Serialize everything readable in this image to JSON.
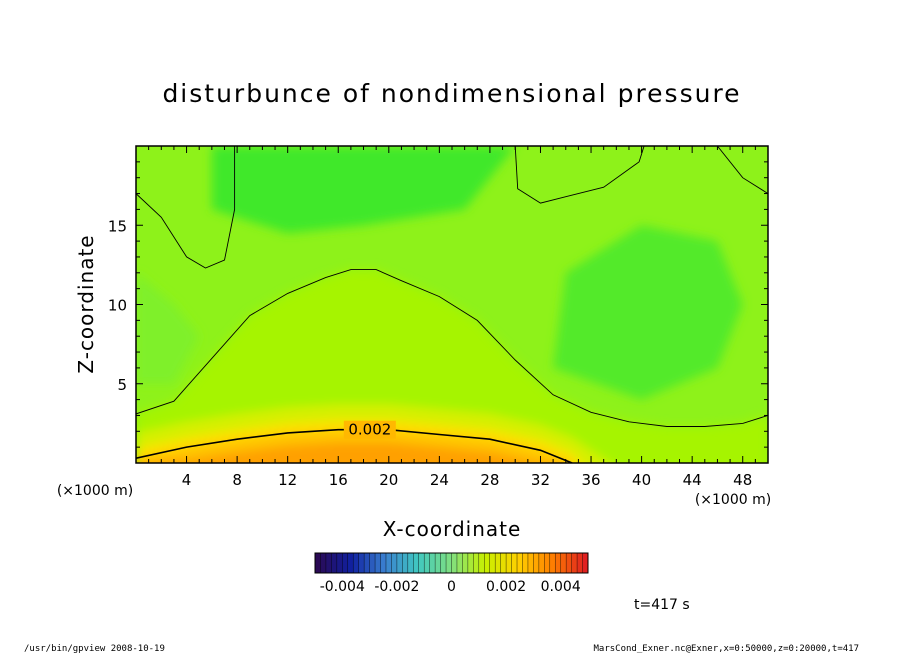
{
  "chart_data": {
    "type": "heatmap",
    "title": "disturbunce of nondimensional pressure",
    "xlabel": "X-coordinate",
    "ylabel": "Z-coordinate",
    "x_unit": "(×1000 m)",
    "y_unit": "(×1000 m)",
    "xlim": [
      0,
      50
    ],
    "ylim": [
      0,
      20
    ],
    "x_ticks": [
      "4",
      "8",
      "12",
      "16",
      "20",
      "24",
      "28",
      "32",
      "36",
      "40",
      "44",
      "48"
    ],
    "x_tick_values": [
      4,
      8,
      12,
      16,
      20,
      24,
      28,
      32,
      36,
      40,
      44,
      48
    ],
    "y_ticks": [
      "5",
      "10",
      "15"
    ],
    "y_tick_values": [
      5,
      10,
      15
    ],
    "colorbar": {
      "range": [
        -0.005,
        0.005
      ],
      "tick_labels": [
        "-0.004",
        "-0.002",
        "0",
        "0.002",
        "0.004"
      ],
      "tick_values": [
        -0.004,
        -0.002,
        0,
        0.002,
        0.004
      ],
      "colors": [
        "#2a0a55",
        "#1020a0",
        "#3a7fd0",
        "#40c8c0",
        "#80e080",
        "#c8f000",
        "#ffd000",
        "#ff8000",
        "#e02020"
      ]
    },
    "contour_labels": [
      {
        "label": "0.002",
        "value": 0.002
      }
    ],
    "contours": [
      {
        "value": 0.002,
        "x": [
          0,
          4,
          8,
          12,
          16,
          20,
          24,
          28,
          32,
          34.5
        ],
        "y": [
          0.3,
          1.0,
          1.5,
          1.9,
          2.1,
          2.1,
          1.8,
          1.5,
          0.8,
          0
        ]
      },
      {
        "value": 0.001,
        "x": [
          0,
          3,
          6,
          9,
          12,
          15,
          17,
          19,
          21,
          24,
          27,
          30,
          33,
          36,
          39,
          42,
          45,
          48,
          50
        ],
        "y": [
          3.1,
          3.9,
          6.6,
          9.3,
          10.7,
          11.7,
          12.2,
          12.2,
          11.5,
          10.5,
          9.0,
          6.5,
          4.3,
          3.2,
          2.6,
          2.3,
          2.3,
          2.5,
          3.0
        ]
      },
      {
        "value": 0.001,
        "x": [
          0,
          2,
          4,
          5.5,
          7,
          7.8,
          7.8
        ],
        "y": [
          17.0,
          15.5,
          13.0,
          12.3,
          12.8,
          16.0,
          20
        ]
      },
      {
        "value": 0.001,
        "x": [
          30,
          30.2,
          32,
          34,
          37,
          39.8,
          40.2
        ],
        "y": [
          20,
          17.3,
          16.4,
          16.8,
          17.4,
          19.0,
          20
        ]
      },
      {
        "value": 0.001,
        "x": [
          46,
          48,
          50
        ],
        "y": [
          20,
          18.0,
          17.0
        ]
      }
    ]
  },
  "footer": {
    "left": "/usr/bin/gpview   2008-10-19",
    "right": "MarsCond_Exner.nc@Exner,x=0:50000,z=0:20000,t=417"
  },
  "time_label": "t=417 s"
}
